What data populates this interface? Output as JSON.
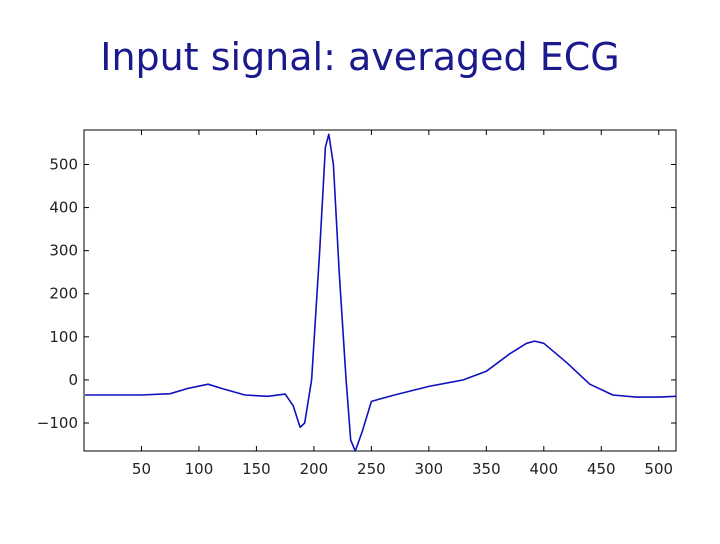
{
  "chart_data": {
    "type": "line",
    "title": "Input signal: averaged ECG",
    "x": [
      1,
      50,
      75,
      90,
      108,
      120,
      140,
      160,
      175,
      182,
      188,
      192,
      198,
      205,
      210,
      213,
      217,
      222,
      228,
      232,
      236,
      242,
      250,
      270,
      300,
      330,
      350,
      370,
      385,
      392,
      400,
      420,
      440,
      460,
      480,
      500,
      515
    ],
    "series": [
      {
        "color": "#1010c0",
        "values": [
          -35,
          -35,
          -32,
          -20,
          -10,
          -20,
          -35,
          -38,
          -33,
          -60,
          -110,
          -100,
          0,
          300,
          540,
          570,
          500,
          250,
          0,
          -140,
          -165,
          -120,
          -50,
          -35,
          -15,
          0,
          20,
          60,
          85,
          90,
          85,
          40,
          -10,
          -35,
          -40,
          -40,
          -38
        ]
      }
    ],
    "xlim": [
      0,
      515
    ],
    "xticks": [
      50,
      100,
      150,
      200,
      250,
      300,
      350,
      400,
      450,
      500
    ],
    "ylim": [
      -165,
      580
    ],
    "yticks": [
      {
        "value": -100,
        "label": "−100"
      },
      0,
      100,
      200,
      300,
      400,
      500
    ]
  }
}
